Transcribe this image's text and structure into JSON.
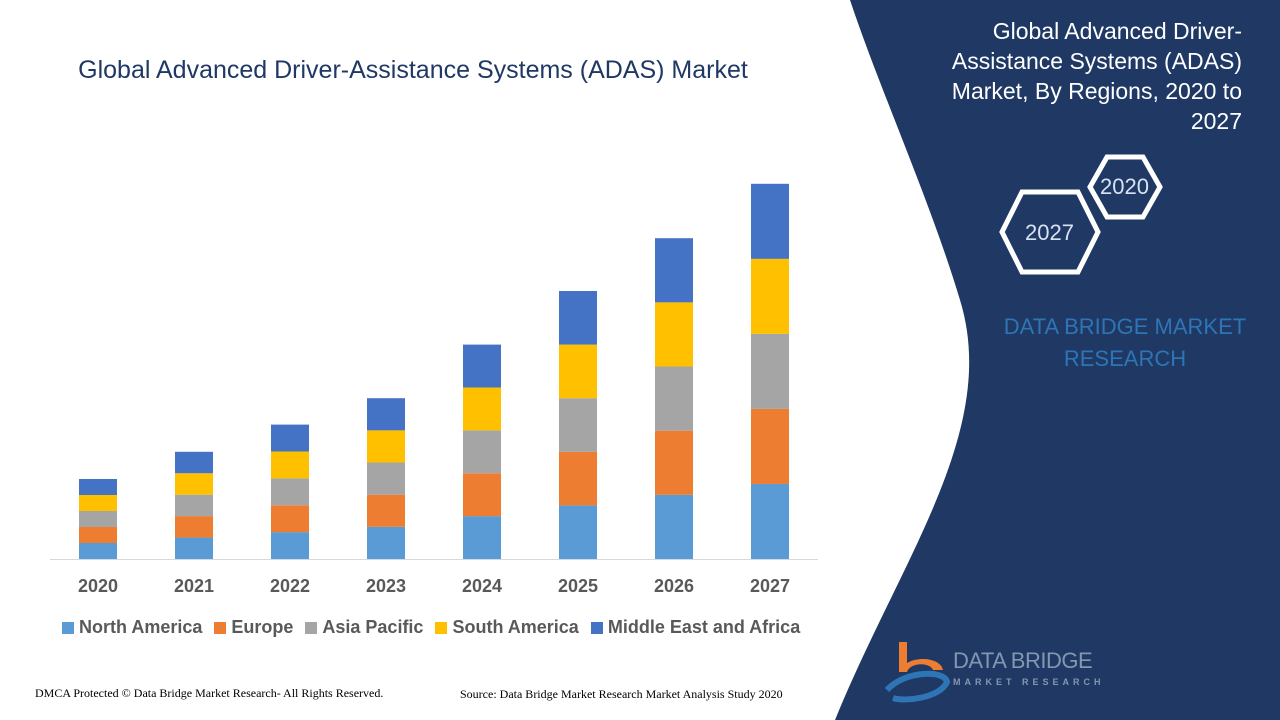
{
  "chart_data": {
    "type": "bar",
    "stacked": true,
    "title": "Global Advanced Driver-Assistance Systems (ADAS) Market",
    "categories": [
      "2020",
      "2021",
      "2022",
      "2023",
      "2024",
      "2025",
      "2026",
      "2027"
    ],
    "series": [
      {
        "name": "North America",
        "color": "#5b9bd5",
        "values": [
          1.0,
          1.34,
          1.68,
          2.01,
          2.68,
          3.35,
          4.01,
          4.69
        ]
      },
      {
        "name": "Europe",
        "color": "#ed7d31",
        "values": [
          1.0,
          1.34,
          1.68,
          2.01,
          2.68,
          3.35,
          4.01,
          4.69
        ]
      },
      {
        "name": "Asia Pacific",
        "color": "#a5a5a5",
        "values": [
          1.0,
          1.34,
          1.68,
          2.01,
          2.68,
          3.35,
          4.01,
          4.69
        ]
      },
      {
        "name": "South America",
        "color": "#ffc000",
        "values": [
          1.0,
          1.34,
          1.68,
          2.01,
          2.68,
          3.35,
          4.01,
          4.69
        ]
      },
      {
        "name": "Middle East and Africa",
        "color": "#4472c4",
        "values": [
          1.0,
          1.34,
          1.68,
          2.01,
          2.68,
          3.35,
          4.01,
          4.69
        ]
      }
    ],
    "xlabel": "",
    "ylabel": "",
    "grid": false,
    "legend": "bottom"
  },
  "panel": {
    "title": "Global Advanced Driver-Assistance Systems (ADAS) Market, By Regions, 2020 to 2027",
    "hex_start": "2020",
    "hex_end": "2027",
    "brand": "DATA BRIDGE MARKET RESEARCH",
    "bg_color": "#1f3864"
  },
  "logo": {
    "name": "DATA BRIDGE",
    "sub": "MARKET RESEARCH"
  },
  "footer": {
    "copyright": "DMCA Protected © Data Bridge Market Research- All Rights Reserved.",
    "source": "Source: Data Bridge Market Research Market Analysis Study 2020"
  }
}
